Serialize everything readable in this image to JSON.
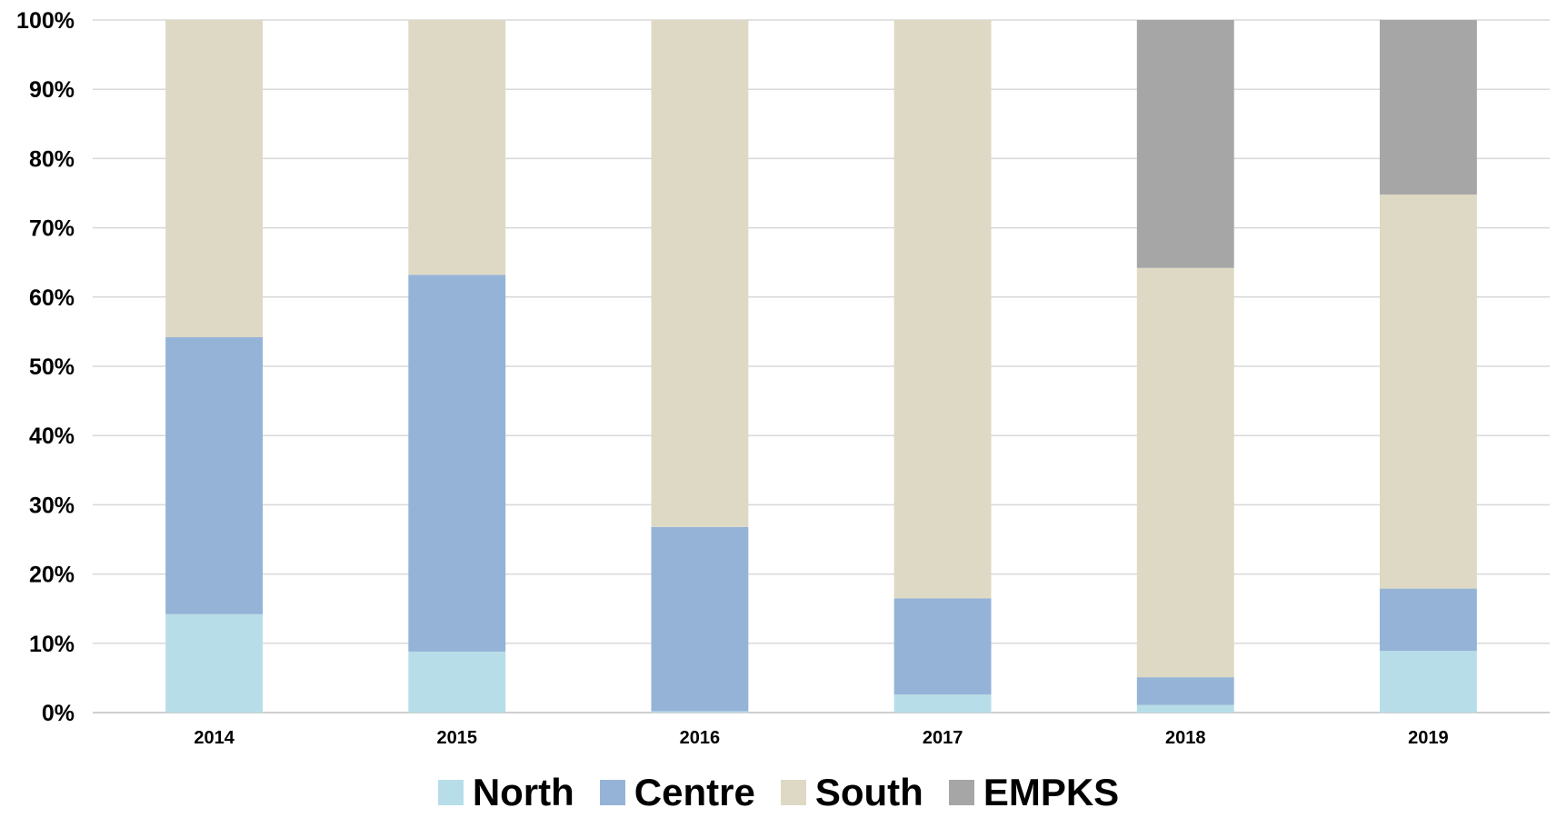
{
  "chart_data": {
    "type": "bar",
    "stacked": true,
    "percent": true,
    "categories": [
      "2014",
      "2015",
      "2016",
      "2017",
      "2018",
      "2019"
    ],
    "series": [
      {
        "name": "North",
        "color": "#B7DEE8",
        "values": [
          14.2,
          8.8,
          0.2,
          2.6,
          1.1,
          8.9
        ]
      },
      {
        "name": "Centre",
        "color": "#95B3D7",
        "values": [
          40.0,
          54.4,
          26.6,
          13.9,
          4.0,
          9.0
        ]
      },
      {
        "name": "South",
        "color": "#DDD9C4",
        "values": [
          45.8,
          36.8,
          73.2,
          83.5,
          59.1,
          56.9
        ]
      },
      {
        "name": "EMPKS",
        "color": "#A6A6A6",
        "values": [
          0,
          0,
          0,
          0,
          35.8,
          25.2
        ]
      }
    ],
    "y_ticks": [
      "0%",
      "10%",
      "20%",
      "30%",
      "40%",
      "50%",
      "60%",
      "70%",
      "80%",
      "90%",
      "100%"
    ],
    "ylim": [
      0,
      100
    ],
    "grid": true,
    "legend_position": "bottom"
  }
}
